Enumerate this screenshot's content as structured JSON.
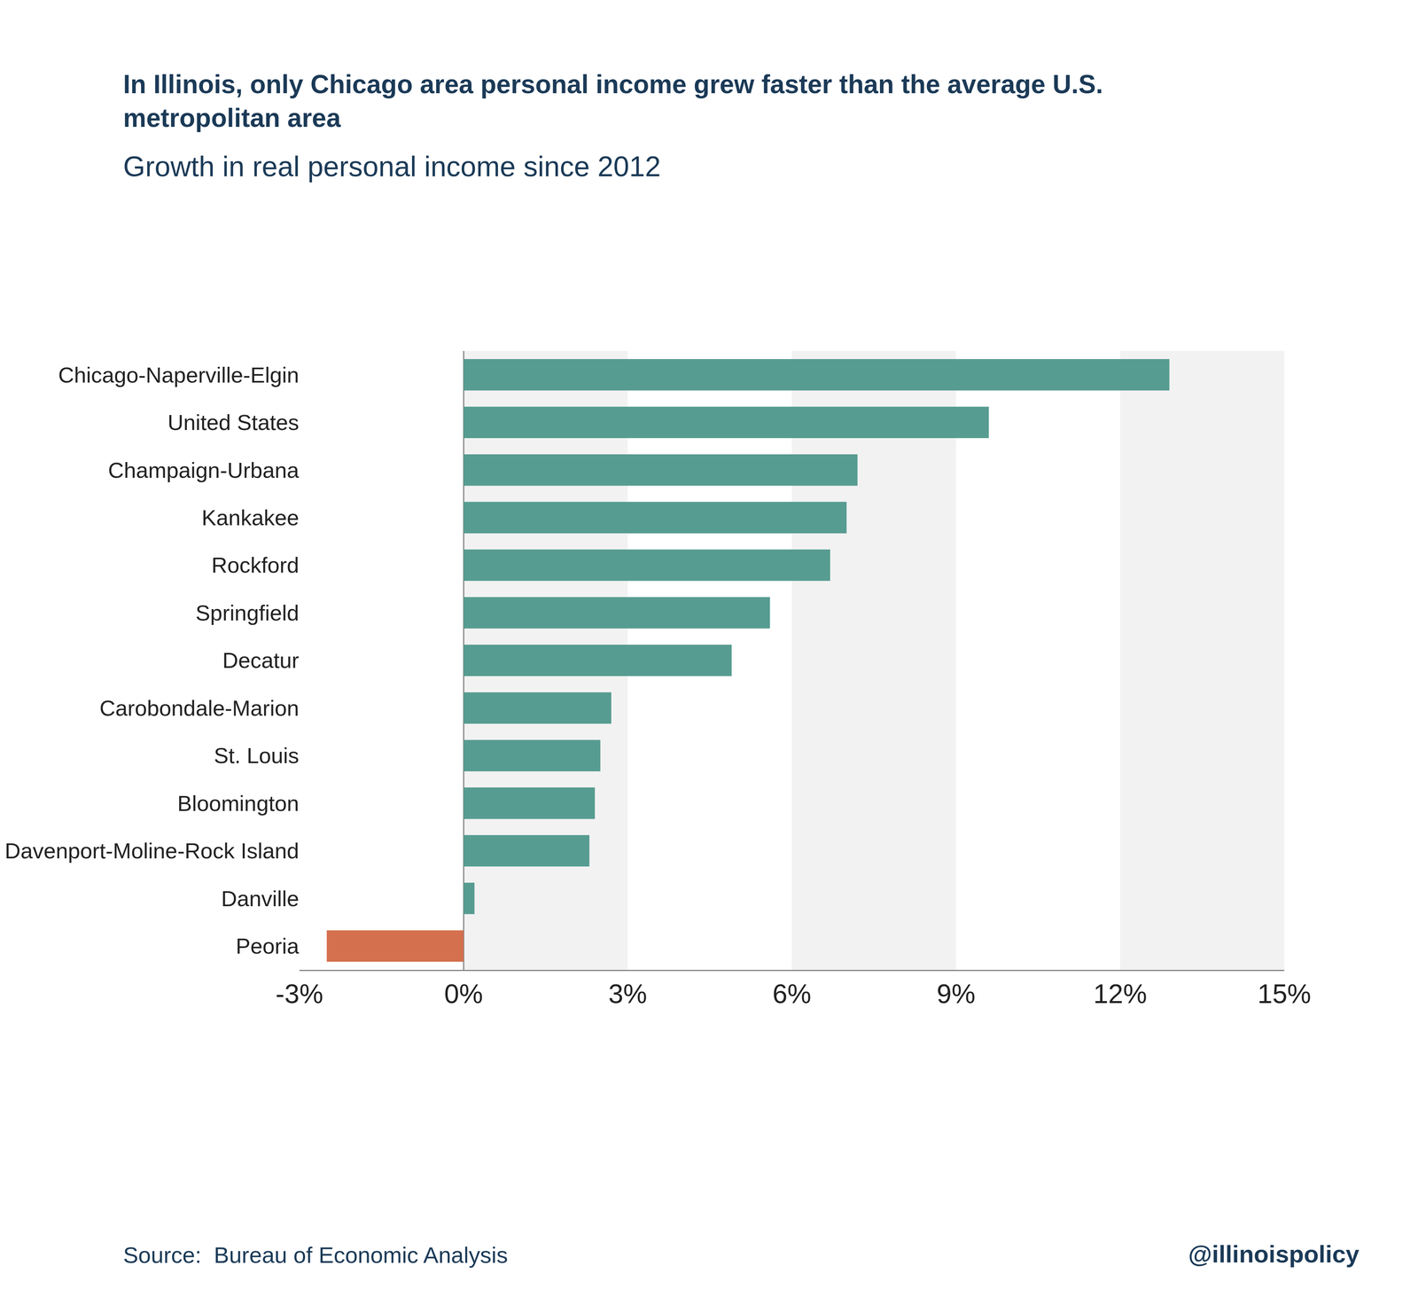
{
  "chart_data": {
    "type": "bar",
    "orientation": "horizontal",
    "title": "In Illinois, only Chicago area personal income grew faster than the average U.S. metropolitan area",
    "subtitle": "Growth in real personal income since 2012",
    "source": "Source:  Bureau of Economic Analysis",
    "credit": "@illinoispolicy",
    "categories": [
      "Chicago-Naperville-Elgin",
      "United States",
      "Champaign-Urbana",
      "Kankakee",
      "Rockford",
      "Springfield",
      "Decatur",
      "Carobondale-Marion",
      "St. Louis",
      "Bloomington",
      "Davenport-Moline-Rock Island",
      "Danville",
      "Peoria"
    ],
    "values": [
      12.9,
      9.6,
      7.2,
      7.0,
      6.7,
      5.6,
      4.9,
      2.7,
      2.5,
      2.4,
      2.3,
      0.2,
      -2.5
    ],
    "colors": [
      "#579c91",
      "#579c91",
      "#579c91",
      "#579c91",
      "#579c91",
      "#579c91",
      "#579c91",
      "#579c91",
      "#579c91",
      "#579c91",
      "#579c91",
      "#579c91",
      "#d4704e"
    ],
    "xlim": [
      -3,
      15
    ],
    "xticks": [
      {
        "value": -3,
        "label": "-3%"
      },
      {
        "value": 0,
        "label": "0%"
      },
      {
        "value": 3,
        "label": "3%"
      },
      {
        "value": 6,
        "label": "6%"
      },
      {
        "value": 9,
        "label": "9%"
      },
      {
        "value": 12,
        "label": "12%"
      },
      {
        "value": 15,
        "label": "15%"
      }
    ],
    "grid": true
  }
}
